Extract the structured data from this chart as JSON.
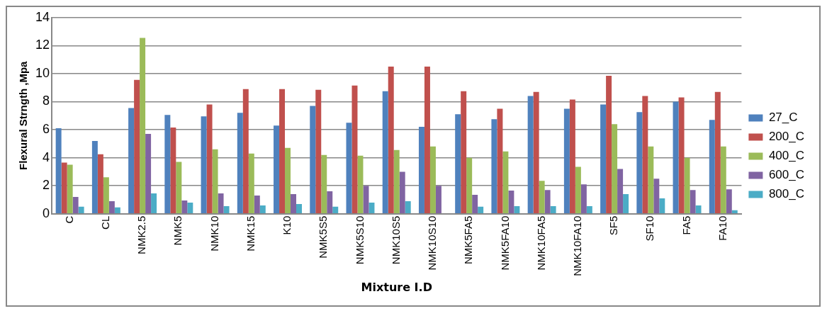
{
  "chart_data": {
    "type": "bar",
    "xlabel": "Mixture I.D",
    "ylabel": "Flexural Strngth ,Mpa",
    "categories": [
      "C",
      "CL",
      "NMK2.5",
      "NMK5",
      "NMK10",
      "NMK15",
      "K10",
      "NMK5S5",
      "NMK5S10",
      "NMK10S5",
      "NMK10S10",
      "NMK5FA5",
      "NMK5FA10",
      "NMK10FA5",
      "NMK10FA10",
      "SF5",
      "SF10",
      "FA5",
      "FA10"
    ],
    "series": [
      {
        "name": "27_C",
        "color": "#4f81bd",
        "values": [
          6.1,
          5.2,
          7.55,
          7.05,
          6.95,
          7.2,
          6.3,
          7.7,
          6.5,
          8.75,
          6.2,
          7.1,
          6.75,
          8.4,
          7.5,
          7.8,
          7.25,
          8.0,
          6.7
        ]
      },
      {
        "name": "200_C",
        "color": "#c0504d",
        "values": [
          3.65,
          4.25,
          9.55,
          6.15,
          7.8,
          8.9,
          8.9,
          8.85,
          9.15,
          10.5,
          10.5,
          8.75,
          7.5,
          8.7,
          8.15,
          9.85,
          8.4,
          8.3,
          8.7
        ]
      },
      {
        "name": "400_C",
        "color": "#9bbb59",
        "values": [
          3.5,
          2.6,
          12.55,
          3.7,
          4.6,
          4.3,
          4.7,
          4.2,
          4.15,
          4.55,
          4.8,
          4.0,
          4.45,
          2.35,
          3.35,
          6.4,
          4.8,
          4.0,
          4.8
        ]
      },
      {
        "name": "600_C",
        "color": "#8064a2",
        "values": [
          1.2,
          0.9,
          5.7,
          0.95,
          1.45,
          1.3,
          1.4,
          1.6,
          2.0,
          3.0,
          2.0,
          1.35,
          1.65,
          1.7,
          2.1,
          3.2,
          2.5,
          1.7,
          1.75
        ]
      },
      {
        "name": "800_C",
        "color": "#4bacc6",
        "values": [
          0.5,
          0.45,
          1.45,
          0.8,
          0.55,
          0.6,
          0.7,
          0.5,
          0.8,
          0.9,
          null,
          0.5,
          0.55,
          0.55,
          0.55,
          1.4,
          1.1,
          0.6,
          0.25
        ]
      }
    ],
    "ylim": [
      0,
      14
    ],
    "yticks": [
      0,
      2,
      4,
      6,
      8,
      10,
      12,
      14
    ],
    "grid": "y",
    "legend": "right"
  }
}
